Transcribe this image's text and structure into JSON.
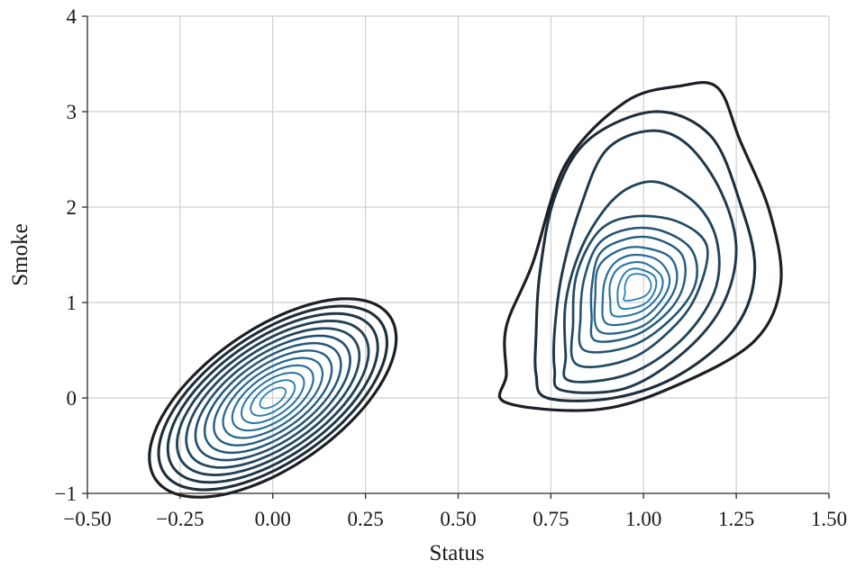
{
  "chart_data": {
    "type": "contour",
    "title": "",
    "xlabel": "Status",
    "ylabel": "Smoke",
    "xlim": [
      -0.5,
      1.5
    ],
    "ylim": [
      -1,
      4
    ],
    "x_ticks": [
      -0.5,
      -0.25,
      0.0,
      0.25,
      0.5,
      0.75,
      1.0,
      1.25,
      1.5
    ],
    "x_tick_labels": [
      "−0.50",
      "−0.25",
      "0.00",
      "0.25",
      "0.50",
      "0.75",
      "1.00",
      "1.25",
      "1.50"
    ],
    "y_ticks": [
      -1,
      0,
      1,
      2,
      3,
      4
    ],
    "y_tick_labels": [
      "−1",
      "0",
      "1",
      "2",
      "3",
      "4"
    ],
    "grid": true,
    "colors": {
      "outer": "#1c1f24",
      "inner": "#2a82b8"
    },
    "clusters": [
      {
        "kind": "ellipse",
        "center": [
          0.0,
          0.0
        ],
        "outer_semi_axes": [
          0.385,
          0.185
        ],
        "rotation_deg": 35,
        "levels": 13
      },
      {
        "kind": "contour",
        "peak": [
          0.99,
          1.22
        ],
        "levels": [
          [
            [
              0.63,
              -0.05
            ],
            [
              0.88,
              -0.12
            ],
            [
              1.1,
              0.15
            ],
            [
              1.3,
              0.6
            ],
            [
              1.37,
              1.2
            ],
            [
              1.34,
              1.95
            ],
            [
              1.26,
              2.7
            ],
            [
              1.2,
              3.25
            ],
            [
              1.1,
              3.27
            ],
            [
              0.95,
              3.1
            ],
            [
              0.79,
              2.45
            ],
            [
              0.7,
              1.4
            ],
            [
              0.63,
              0.75
            ],
            [
              0.63,
              0.25
            ]
          ],
          [
            [
              0.74,
              0.0
            ],
            [
              0.92,
              0.0
            ],
            [
              1.1,
              0.25
            ],
            [
              1.25,
              0.75
            ],
            [
              1.3,
              1.35
            ],
            [
              1.26,
              2.05
            ],
            [
              1.18,
              2.75
            ],
            [
              1.03,
              3.0
            ],
            [
              0.85,
              2.7
            ],
            [
              0.76,
              2.1
            ],
            [
              0.72,
              1.3
            ],
            [
              0.71,
              0.65
            ],
            [
              0.71,
              0.25
            ]
          ],
          [
            [
              0.78,
              0.08
            ],
            [
              0.95,
              0.1
            ],
            [
              1.1,
              0.45
            ],
            [
              1.21,
              0.95
            ],
            [
              1.25,
              1.55
            ],
            [
              1.21,
              2.15
            ],
            [
              1.12,
              2.65
            ],
            [
              1.02,
              2.8
            ],
            [
              0.9,
              2.6
            ],
            [
              0.83,
              2.0
            ],
            [
              0.78,
              1.3
            ],
            [
              0.76,
              0.7
            ],
            [
              0.76,
              0.3
            ]
          ],
          [
            [
              0.8,
              0.18
            ],
            [
              0.96,
              0.25
            ],
            [
              1.1,
              0.6
            ],
            [
              1.19,
              1.1
            ],
            [
              1.2,
              1.6
            ],
            [
              1.15,
              2.0
            ],
            [
              1.05,
              2.25
            ],
            [
              0.97,
              2.22
            ],
            [
              0.9,
              2.0
            ],
            [
              0.83,
              1.55
            ],
            [
              0.79,
              1.0
            ],
            [
              0.79,
              0.45
            ]
          ],
          [
            [
              0.82,
              0.35
            ],
            [
              0.97,
              0.42
            ],
            [
              1.09,
              0.78
            ],
            [
              1.15,
              1.15
            ],
            [
              1.17,
              1.6
            ],
            [
              1.09,
              1.85
            ],
            [
              0.97,
              1.9
            ],
            [
              0.88,
              1.75
            ],
            [
              0.82,
              1.3
            ],
            [
              0.81,
              0.8
            ]
          ],
          [
            [
              0.84,
              0.5
            ],
            [
              0.97,
              0.55
            ],
            [
              1.08,
              0.85
            ],
            [
              1.14,
              1.2
            ],
            [
              1.13,
              1.55
            ],
            [
              1.05,
              1.75
            ],
            [
              0.96,
              1.77
            ],
            [
              0.88,
              1.62
            ],
            [
              0.84,
              1.25
            ],
            [
              0.83,
              0.85
            ]
          ],
          [
            [
              0.87,
              0.6
            ],
            [
              0.98,
              0.66
            ],
            [
              1.07,
              0.92
            ],
            [
              1.11,
              1.22
            ],
            [
              1.1,
              1.52
            ],
            [
              1.02,
              1.68
            ],
            [
              0.94,
              1.65
            ],
            [
              0.88,
              1.5
            ],
            [
              0.86,
              1.15
            ],
            [
              0.86,
              0.85
            ]
          ],
          [
            [
              0.88,
              0.7
            ],
            [
              0.99,
              0.74
            ],
            [
              1.06,
              0.98
            ],
            [
              1.09,
              1.24
            ],
            [
              1.07,
              1.48
            ],
            [
              0.99,
              1.58
            ],
            [
              0.93,
              1.54
            ],
            [
              0.88,
              1.38
            ],
            [
              0.87,
              1.1
            ]
          ],
          [
            [
              0.9,
              0.78
            ],
            [
              0.99,
              0.82
            ],
            [
              1.05,
              1.03
            ],
            [
              1.07,
              1.25
            ],
            [
              1.04,
              1.44
            ],
            [
              0.98,
              1.5
            ],
            [
              0.93,
              1.44
            ],
            [
              0.9,
              1.28
            ],
            [
              0.89,
              1.05
            ]
          ],
          [
            [
              0.92,
              0.86
            ],
            [
              0.99,
              0.9
            ],
            [
              1.04,
              1.07
            ],
            [
              1.05,
              1.26
            ],
            [
              1.01,
              1.4
            ],
            [
              0.97,
              1.42
            ],
            [
              0.93,
              1.35
            ],
            [
              0.91,
              1.2
            ],
            [
              0.91,
              1.02
            ]
          ],
          [
            [
              0.94,
              0.94
            ],
            [
              1.0,
              0.98
            ],
            [
              1.03,
              1.12
            ],
            [
              1.03,
              1.27
            ],
            [
              0.99,
              1.35
            ],
            [
              0.96,
              1.34
            ],
            [
              0.94,
              1.25
            ],
            [
              0.93,
              1.1
            ]
          ],
          [
            [
              0.95,
              1.02
            ],
            [
              1.0,
              1.06
            ],
            [
              1.02,
              1.16
            ],
            [
              1.01,
              1.27
            ],
            [
              0.98,
              1.3
            ],
            [
              0.96,
              1.27
            ],
            [
              0.95,
              1.18
            ],
            [
              0.95,
              1.1
            ]
          ]
        ]
      }
    ]
  }
}
